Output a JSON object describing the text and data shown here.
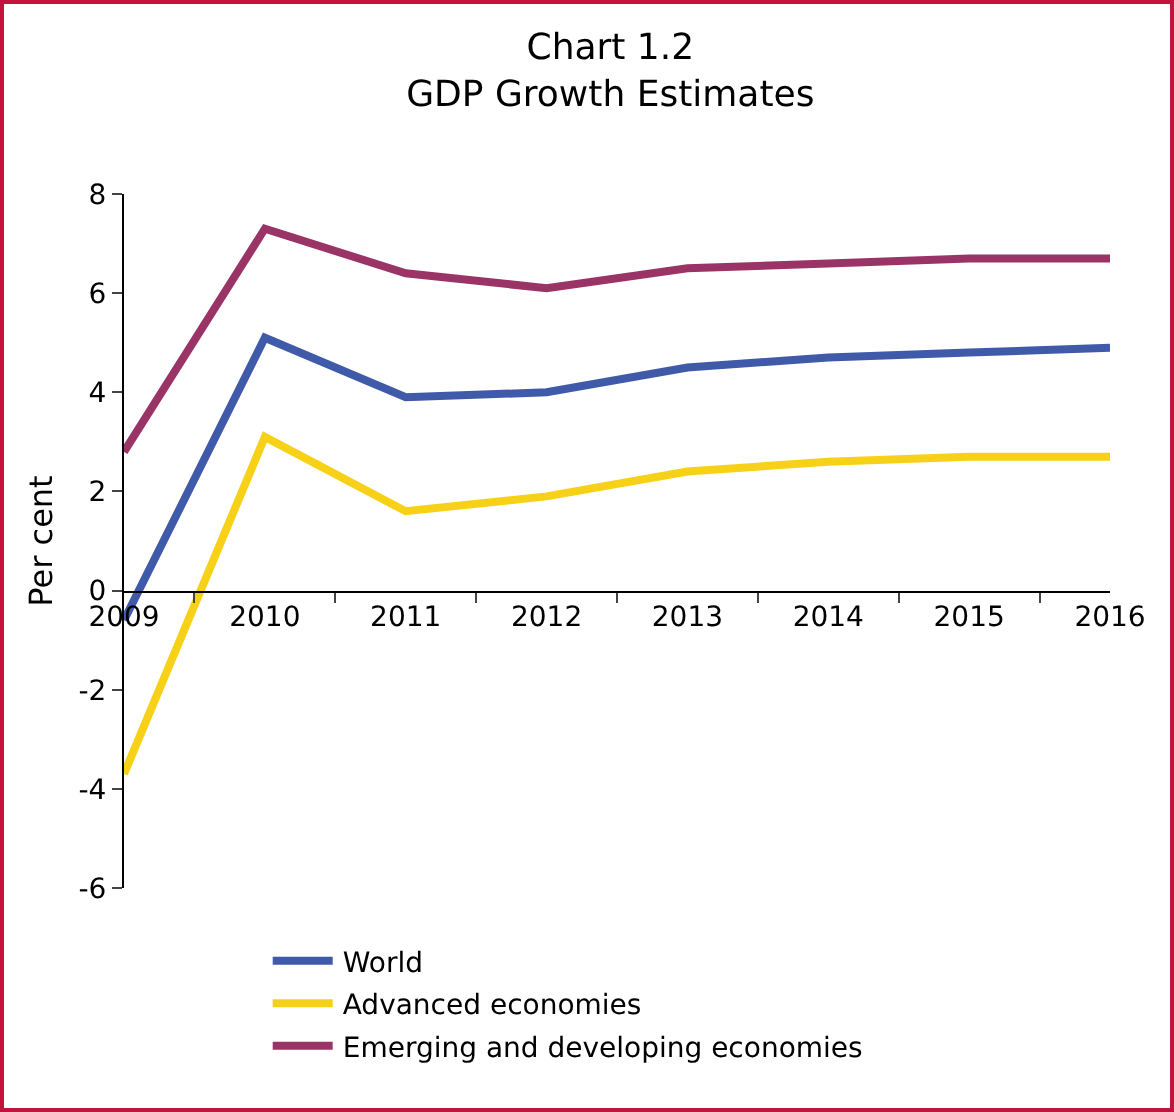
{
  "chart_data": {
    "type": "line",
    "title": "Chart 1.2\nGDP Growth Estimates",
    "ylabel": "Per cent",
    "categories": [
      "2009",
      "2010",
      "2011",
      "2012",
      "2013",
      "2014",
      "2015",
      "2016"
    ],
    "series": [
      {
        "name": "World",
        "color": "#3f5aa8",
        "values": [
          -0.6,
          5.1,
          3.9,
          4.0,
          4.5,
          4.7,
          4.8,
          4.9
        ]
      },
      {
        "name": "Advanced economies",
        "color": "#f7d117",
        "values": [
          -3.7,
          3.1,
          1.6,
          1.9,
          2.4,
          2.6,
          2.7,
          2.7
        ]
      },
      {
        "name": "Emerging and developing economies",
        "color": "#9b3466",
        "values": [
          2.8,
          7.3,
          6.4,
          6.1,
          6.5,
          6.6,
          6.7,
          6.7
        ]
      }
    ],
    "ylim": [
      -6,
      8
    ],
    "yticks": [
      -6,
      -4,
      -2,
      0,
      2,
      4,
      6,
      8
    ],
    "grid": false,
    "legend": "bottom",
    "marker": "none",
    "line_style": "solid"
  }
}
